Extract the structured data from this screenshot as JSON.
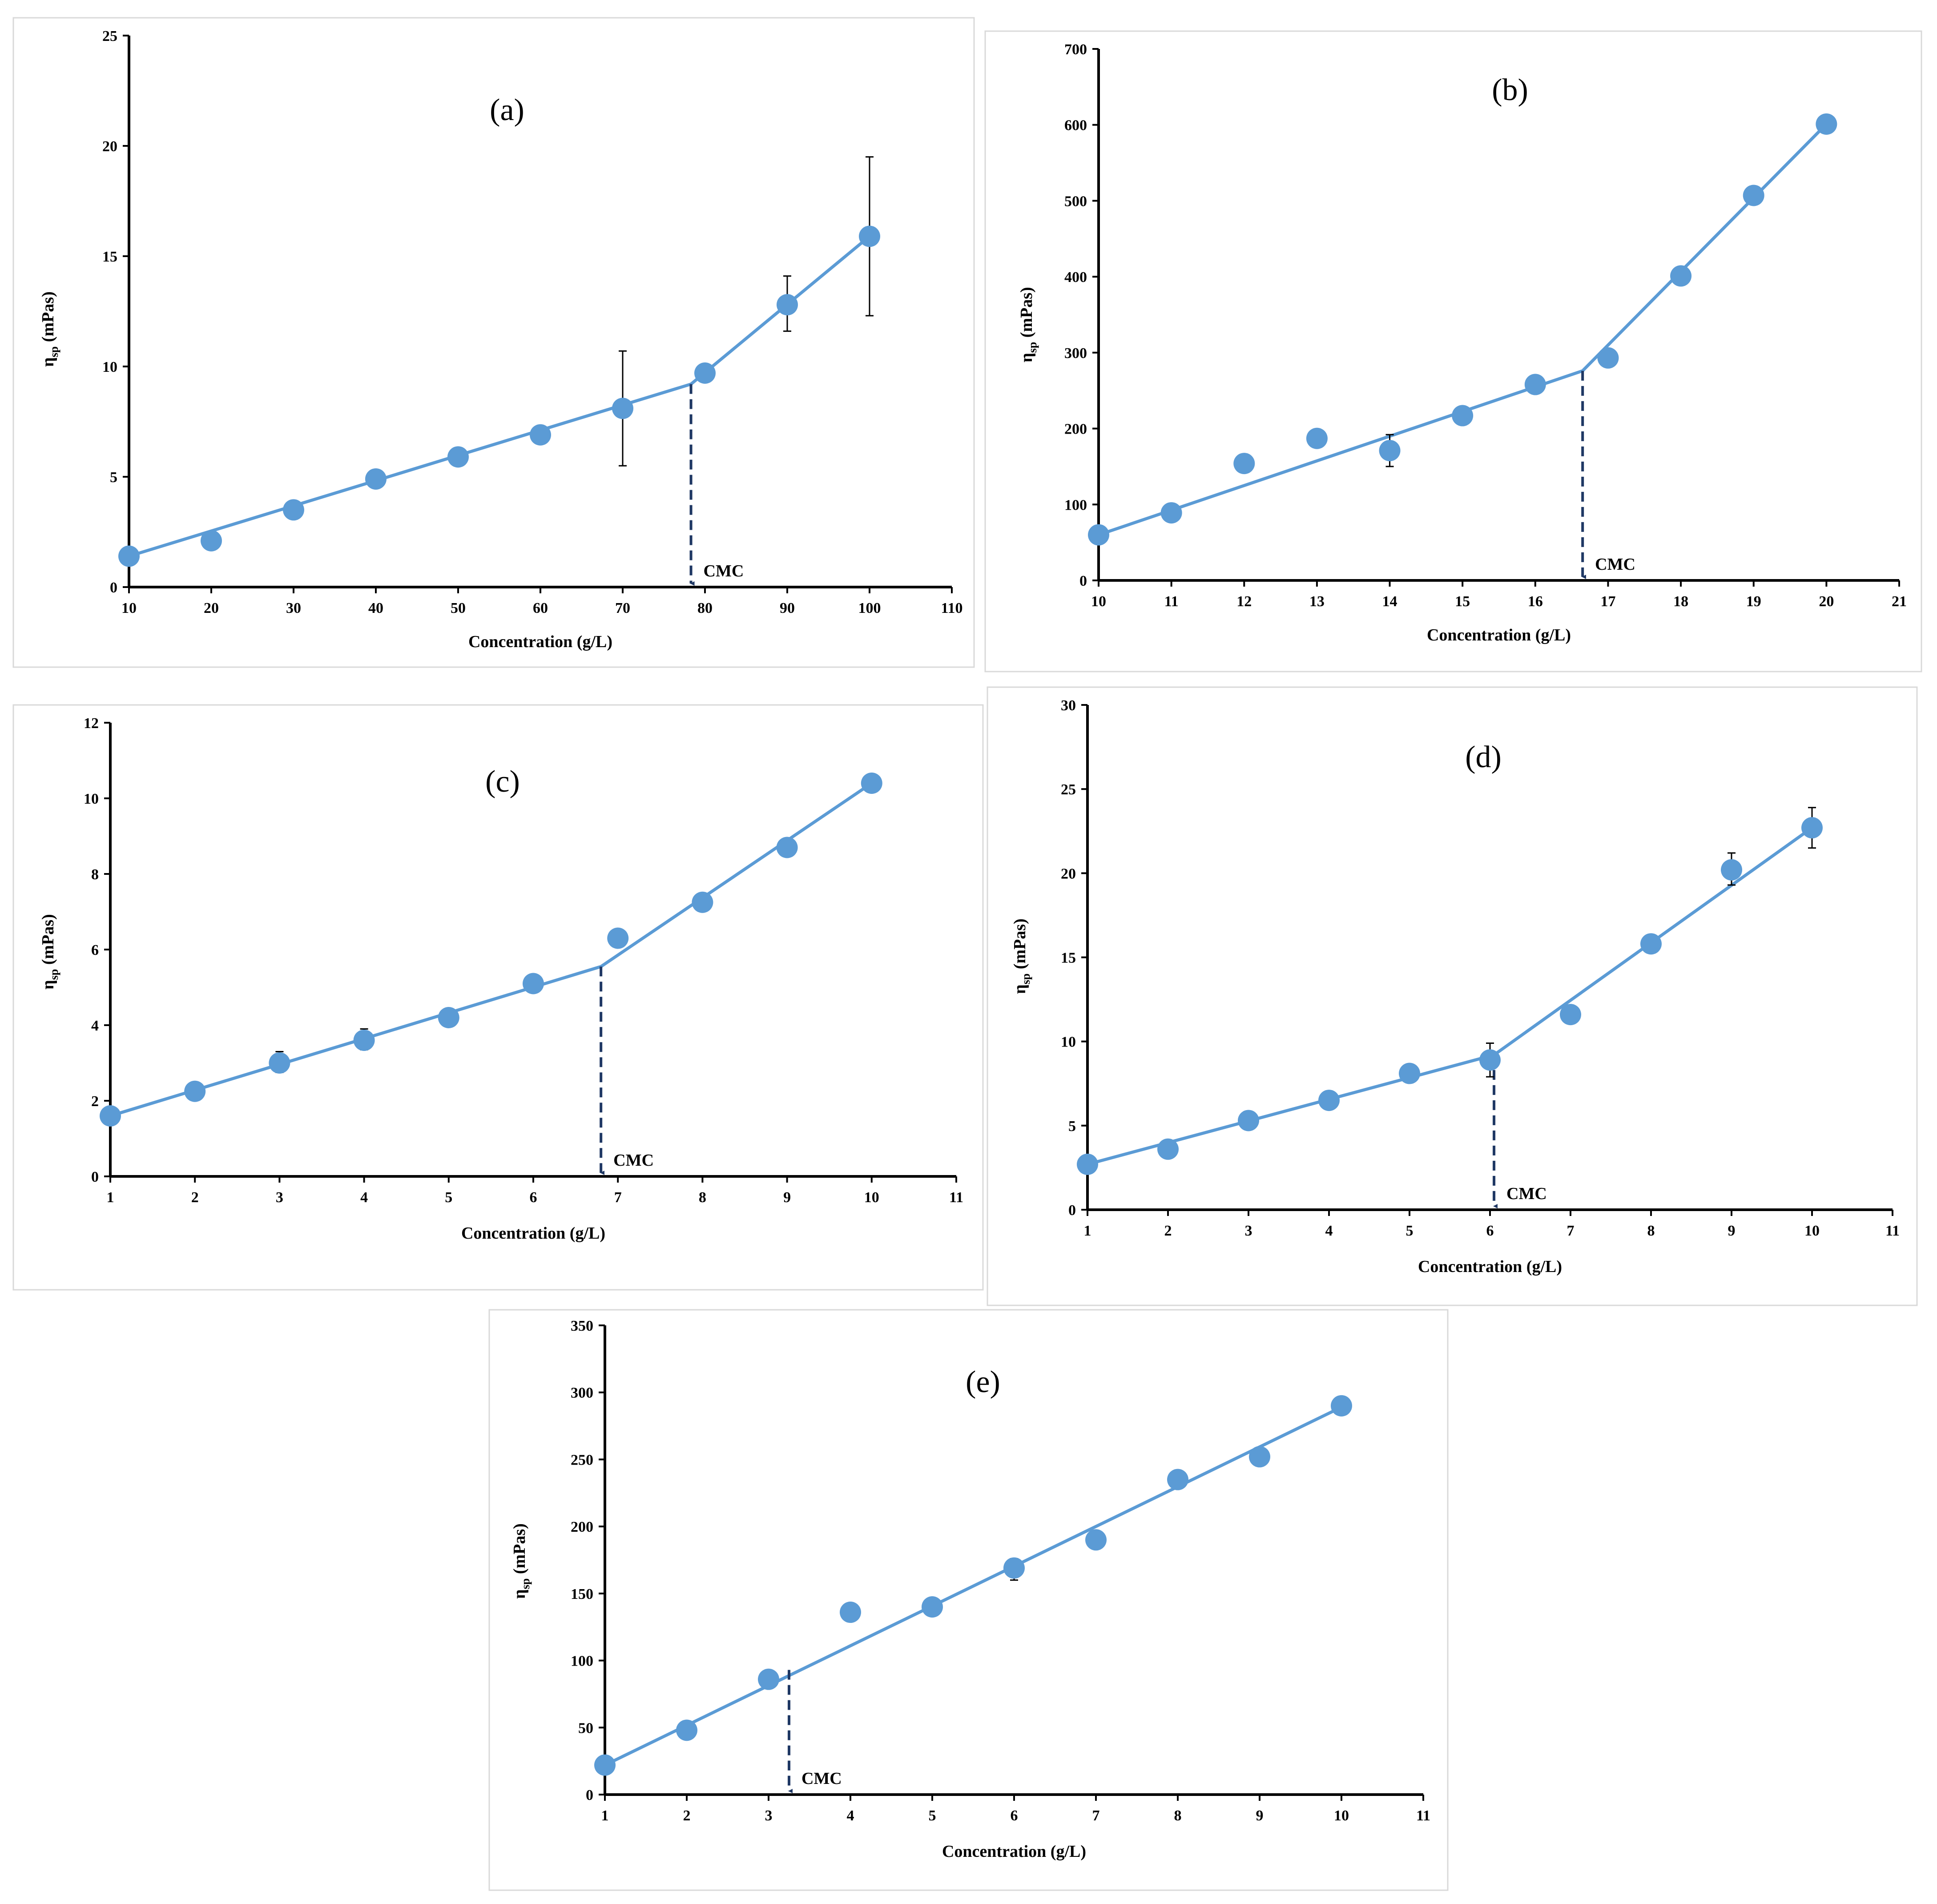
{
  "chart_data": [
    {
      "type": "scatter",
      "panel_label": "(a)",
      "xlabel": "Concentration (g/L)",
      "ylabel_main": "η",
      "ylabel_sub": "sp",
      "ylabel_unit": " (mPas)",
      "cmc_label": "CMC",
      "xlim": [
        10,
        110
      ],
      "ylim": [
        0,
        25
      ],
      "xticks": [
        10,
        20,
        30,
        40,
        50,
        60,
        70,
        80,
        90,
        100,
        110
      ],
      "yticks": [
        0,
        5,
        10,
        15,
        20,
        25
      ],
      "grid": false,
      "legend": "none",
      "marker_color": "#5b9bd5",
      "line_color": "#5b9bd5",
      "cmc_color": "#1f3864",
      "points": [
        {
          "x": 10,
          "y": 1.4
        },
        {
          "x": 20,
          "y": 2.1
        },
        {
          "x": 30,
          "y": 3.5
        },
        {
          "x": 40,
          "y": 4.9
        },
        {
          "x": 50,
          "y": 5.9
        },
        {
          "x": 60,
          "y": 6.9
        },
        {
          "x": 70,
          "y": 8.1
        },
        {
          "x": 80,
          "y": 9.7
        },
        {
          "x": 90,
          "y": 12.8
        },
        {
          "x": 100,
          "y": 15.9
        }
      ],
      "error_bars": [
        {
          "x": 70,
          "low": 5.5,
          "high": 10.7
        },
        {
          "x": 90,
          "low": 11.6,
          "high": 14.1
        },
        {
          "x": 100,
          "low": 12.3,
          "high": 19.5
        }
      ],
      "fit_lines": [
        [
          {
            "x": 10,
            "y": 1.4
          },
          {
            "x": 78.3,
            "y": 9.2
          }
        ],
        [
          {
            "x": 78.3,
            "y": 9.2
          },
          {
            "x": 100,
            "y": 15.9
          }
        ]
      ],
      "cmc_x": 78.3,
      "cmc_y": 9.2
    },
    {
      "type": "scatter",
      "panel_label": "(b)",
      "xlabel": "Concentration (g/L)",
      "ylabel_main": "η",
      "ylabel_sub": "sp",
      "ylabel_unit": " (mPas)",
      "cmc_label": "CMC",
      "xlim": [
        10,
        21
      ],
      "ylim": [
        0,
        700
      ],
      "xticks": [
        10,
        11,
        12,
        13,
        14,
        15,
        16,
        17,
        18,
        19,
        20,
        21
      ],
      "yticks": [
        0,
        100,
        200,
        300,
        400,
        500,
        600,
        700
      ],
      "grid": false,
      "legend": "none",
      "marker_color": "#5b9bd5",
      "line_color": "#5b9bd5",
      "cmc_color": "#1f3864",
      "points": [
        {
          "x": 10,
          "y": 60
        },
        {
          "x": 11,
          "y": 89
        },
        {
          "x": 12,
          "y": 154
        },
        {
          "x": 13,
          "y": 187
        },
        {
          "x": 14,
          "y": 171
        },
        {
          "x": 15,
          "y": 217
        },
        {
          "x": 16,
          "y": 258
        },
        {
          "x": 17,
          "y": 293
        },
        {
          "x": 18,
          "y": 401
        },
        {
          "x": 19,
          "y": 507
        },
        {
          "x": 20,
          "y": 601
        }
      ],
      "error_bars": [
        {
          "x": 14,
          "low": 150,
          "high": 192
        }
      ],
      "fit_lines": [
        [
          {
            "x": 10,
            "y": 60
          },
          {
            "x": 16.65,
            "y": 276
          }
        ],
        [
          {
            "x": 16.65,
            "y": 276
          },
          {
            "x": 20,
            "y": 601
          }
        ]
      ],
      "cmc_x": 16.65,
      "cmc_y": 276
    },
    {
      "type": "scatter",
      "panel_label": "(c)",
      "xlabel": "Concentration (g/L)",
      "ylabel_main": "η",
      "ylabel_sub": "sp",
      "ylabel_unit": " (mPas)",
      "cmc_label": "CMC",
      "xlim": [
        1,
        11
      ],
      "ylim": [
        0,
        12
      ],
      "xticks": [
        1,
        2,
        3,
        4,
        5,
        6,
        7,
        8,
        9,
        10,
        11
      ],
      "yticks": [
        0,
        2,
        4,
        6,
        8,
        10,
        12
      ],
      "grid": false,
      "legend": "none",
      "marker_color": "#5b9bd5",
      "line_color": "#5b9bd5",
      "cmc_color": "#1f3864",
      "points": [
        {
          "x": 1,
          "y": 1.6
        },
        {
          "x": 2,
          "y": 2.25
        },
        {
          "x": 3,
          "y": 3.0
        },
        {
          "x": 4,
          "y": 3.6
        },
        {
          "x": 5,
          "y": 4.2
        },
        {
          "x": 6,
          "y": 5.1
        },
        {
          "x": 7,
          "y": 6.3
        },
        {
          "x": 8,
          "y": 7.25
        },
        {
          "x": 9,
          "y": 8.7
        },
        {
          "x": 10,
          "y": 10.4
        }
      ],
      "error_bars": [
        {
          "x": 3,
          "low": 2.75,
          "high": 3.3
        },
        {
          "x": 4,
          "low": 3.35,
          "high": 3.9
        }
      ],
      "fit_lines": [
        [
          {
            "x": 1,
            "y": 1.6
          },
          {
            "x": 6.8,
            "y": 5.55
          }
        ],
        [
          {
            "x": 6.8,
            "y": 5.55
          },
          {
            "x": 10,
            "y": 10.4
          }
        ]
      ],
      "cmc_x": 6.8,
      "cmc_y": 5.55
    },
    {
      "type": "scatter",
      "panel_label": "(d)",
      "xlabel": "Concentration (g/L)",
      "ylabel_main": "η",
      "ylabel_sub": "sp",
      "ylabel_unit": " (mPas)",
      "cmc_label": "CMC",
      "xlim": [
        1,
        11
      ],
      "ylim": [
        0,
        30
      ],
      "xticks": [
        1,
        2,
        3,
        4,
        5,
        6,
        7,
        8,
        9,
        10,
        11
      ],
      "yticks": [
        0,
        5,
        10,
        15,
        20,
        25,
        30
      ],
      "grid": false,
      "legend": "none",
      "marker_color": "#5b9bd5",
      "line_color": "#5b9bd5",
      "cmc_color": "#1f3864",
      "points": [
        {
          "x": 1,
          "y": 2.7
        },
        {
          "x": 2,
          "y": 3.6
        },
        {
          "x": 3,
          "y": 5.3
        },
        {
          "x": 4,
          "y": 6.5
        },
        {
          "x": 5,
          "y": 8.1
        },
        {
          "x": 6,
          "y": 8.9
        },
        {
          "x": 7,
          "y": 11.6
        },
        {
          "x": 8,
          "y": 15.8
        },
        {
          "x": 9,
          "y": 20.2
        },
        {
          "x": 10,
          "y": 22.7
        }
      ],
      "error_bars": [
        {
          "x": 6,
          "low": 7.9,
          "high": 9.9
        },
        {
          "x": 9,
          "low": 19.3,
          "high": 21.2
        },
        {
          "x": 10,
          "low": 21.5,
          "high": 23.9
        }
      ],
      "fit_lines": [
        [
          {
            "x": 1,
            "y": 2.7
          },
          {
            "x": 6.05,
            "y": 9.2
          }
        ],
        [
          {
            "x": 6.05,
            "y": 9.2
          },
          {
            "x": 10,
            "y": 22.7
          }
        ]
      ],
      "cmc_x": 6.05,
      "cmc_y": 9.2
    },
    {
      "type": "scatter",
      "panel_label": "(e)",
      "xlabel": "Concentration (g/L)",
      "ylabel_main": "η",
      "ylabel_sub": "sp",
      "ylabel_unit": " (mPas)",
      "cmc_label": "CMC",
      "xlim": [
        1,
        11
      ],
      "ylim": [
        0,
        350
      ],
      "xticks": [
        1,
        2,
        3,
        4,
        5,
        6,
        7,
        8,
        9,
        10,
        11
      ],
      "yticks": [
        0,
        50,
        100,
        150,
        200,
        250,
        300,
        350
      ],
      "grid": false,
      "legend": "none",
      "marker_color": "#5b9bd5",
      "line_color": "#5b9bd5",
      "cmc_color": "#1f3864",
      "points": [
        {
          "x": 1,
          "y": 22
        },
        {
          "x": 2,
          "y": 48
        },
        {
          "x": 3,
          "y": 86
        },
        {
          "x": 4,
          "y": 136
        },
        {
          "x": 5,
          "y": 140
        },
        {
          "x": 6,
          "y": 169
        },
        {
          "x": 7,
          "y": 190
        },
        {
          "x": 8,
          "y": 235
        },
        {
          "x": 9,
          "y": 252
        },
        {
          "x": 10,
          "y": 290
        }
      ],
      "error_bars": [
        {
          "x": 6,
          "low": 160,
          "high": 176
        }
      ],
      "fit_lines": [
        [
          {
            "x": 1,
            "y": 22
          },
          {
            "x": 10,
            "y": 289
          }
        ]
      ],
      "cmc_x": 3.25,
      "cmc_y": 93
    }
  ]
}
